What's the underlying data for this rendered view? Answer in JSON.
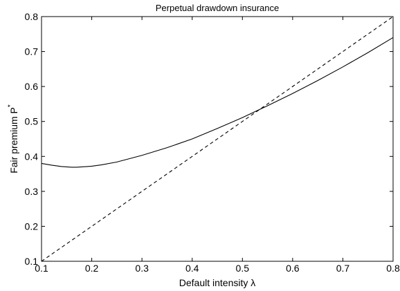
{
  "chart_data": {
    "type": "line",
    "title": "Perpetual drawdown insurance",
    "xlabel": "Default intensity λ",
    "ylabel_main": "Fair premium P",
    "ylabel_sup": "*",
    "xlim": [
      0.1,
      0.8
    ],
    "ylim": [
      0.1,
      0.8
    ],
    "grid": false,
    "x_ticks": [
      "0.1",
      "0.2",
      "0.3",
      "0.4",
      "0.5",
      "0.6",
      "0.7",
      "0.8"
    ],
    "y_ticks": [
      "0.1",
      "0.2",
      "0.3",
      "0.4",
      "0.5",
      "0.6",
      "0.7",
      "0.8"
    ],
    "series": [
      {
        "style": "solid",
        "color": "#000000",
        "x": [
          0.1,
          0.12,
          0.14,
          0.16,
          0.17,
          0.18,
          0.2,
          0.22,
          0.25,
          0.3,
          0.35,
          0.4,
          0.45,
          0.5,
          0.55,
          0.6,
          0.65,
          0.7,
          0.75,
          0.8
        ],
        "y": [
          0.38,
          0.375,
          0.371,
          0.369,
          0.369,
          0.37,
          0.372,
          0.376,
          0.384,
          0.403,
          0.425,
          0.45,
          0.48,
          0.511,
          0.545,
          0.58,
          0.617,
          0.656,
          0.697,
          0.74
        ]
      },
      {
        "style": "dashed",
        "color": "#000000",
        "x": [
          0.1,
          0.8
        ],
        "y": [
          0.1,
          0.8
        ]
      }
    ]
  }
}
